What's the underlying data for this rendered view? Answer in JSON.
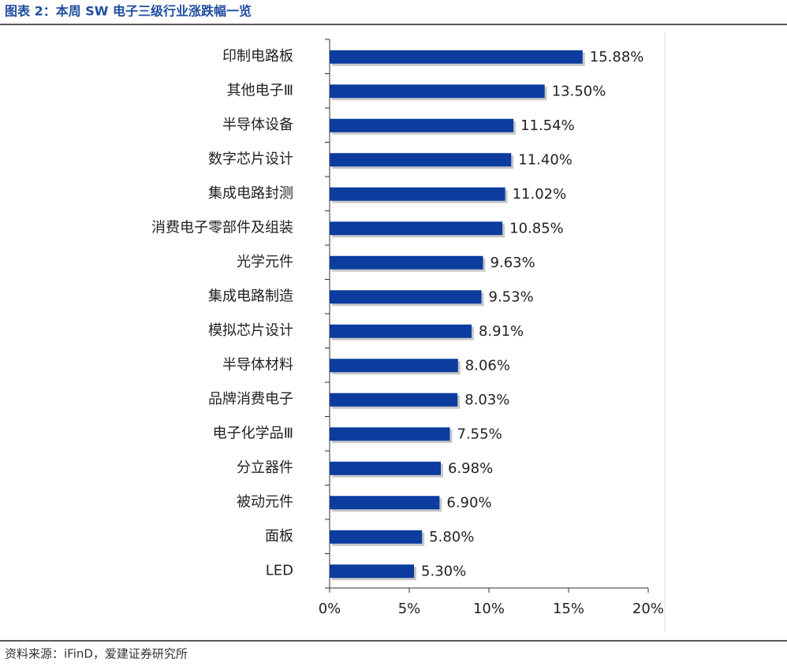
{
  "chart_data": {
    "type": "bar",
    "orientation": "horizontal",
    "title": "图表 2：本周 SW 电子三级行业涨跌幅一览",
    "source": "资料来源：iFinD，爱建证券研究所",
    "categories": [
      "印制电路板",
      "其他电子Ⅲ",
      "半导体设备",
      "数字芯片设计",
      "集成电路封测",
      "消费电子零部件及组装",
      "光学元件",
      "集成电路制造",
      "模拟芯片设计",
      "半导体材料",
      "品牌消费电子",
      "电子化学品Ⅲ",
      "分立器件",
      "被动元件",
      "面板",
      "LED"
    ],
    "values": [
      15.88,
      13.5,
      11.54,
      11.4,
      11.02,
      10.85,
      9.63,
      9.53,
      8.91,
      8.06,
      8.03,
      7.55,
      6.98,
      6.9,
      5.8,
      5.3
    ],
    "value_labels": [
      "15.88%",
      "13.50%",
      "11.54%",
      "11.40%",
      "11.02%",
      "10.85%",
      "9.63%",
      "9.53%",
      "8.91%",
      "8.06%",
      "8.03%",
      "7.55%",
      "6.98%",
      "6.90%",
      "5.80%",
      "5.30%"
    ],
    "color": "#0b3c9e",
    "xlim": [
      0,
      20
    ],
    "xticks": [
      {
        "value": 0,
        "label": "0%"
      },
      {
        "value": 5,
        "label": "5%"
      },
      {
        "value": 10,
        "label": "10%"
      },
      {
        "value": 15,
        "label": "15%"
      },
      {
        "value": 20,
        "label": "20%"
      }
    ]
  }
}
